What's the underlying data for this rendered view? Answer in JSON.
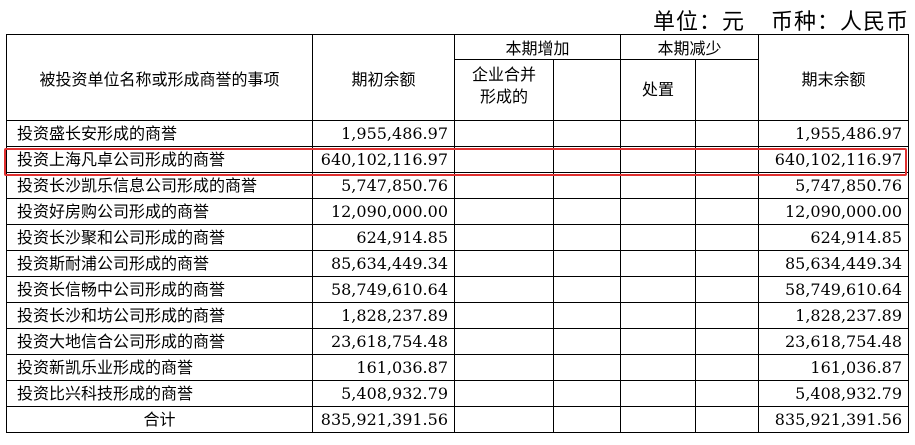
{
  "unit": {
    "unit_text": "单位：元",
    "currency_text": "币种：人民币"
  },
  "header": {
    "item_col": "被投资单位名称或形成商誉的事项",
    "opening": "期初余额",
    "increase_group": "本期增加",
    "decrease_group": "本期减少",
    "closing": "期末余额",
    "increase_sub1": "企业合并\n形成的",
    "decrease_sub1": "处置"
  },
  "rows": [
    {
      "name": "投资盛长安形成的商誉",
      "opening": "1,955,486.97",
      "closing": "1,955,486.97"
    },
    {
      "name": "投资上海凡卓公司形成的商誉",
      "opening": "640,102,116.97",
      "closing": "640,102,116.97"
    },
    {
      "name": "投资长沙凯乐信息公司形成的商誉",
      "opening": "5,747,850.76",
      "closing": "5,747,850.76"
    },
    {
      "name": "投资好房购公司形成的商誉",
      "opening": "12,090,000.00",
      "closing": "12,090,000.00"
    },
    {
      "name": "投资长沙聚和公司形成的商誉",
      "opening": "624,914.85",
      "closing": "624,914.85"
    },
    {
      "name": "投资斯耐浦公司形成的商誉",
      "opening": "85,634,449.34",
      "closing": "85,634,449.34"
    },
    {
      "name": "投资长信畅中公司形成的商誉",
      "opening": "58,749,610.64",
      "closing": "58,749,610.64"
    },
    {
      "name": "投资长沙和坊公司形成的商誉",
      "opening": "1,828,237.89",
      "closing": "1,828,237.89"
    },
    {
      "name": "投资大地信合公司形成的商誉",
      "opening": "23,618,754.48",
      "closing": "23,618,754.48"
    },
    {
      "name": "投资新凯乐业形成的商誉",
      "opening": "161,036.87",
      "closing": "161,036.87"
    },
    {
      "name": "投资比兴科技形成的商誉",
      "opening": "5,408,932.79",
      "closing": "5,408,932.79"
    }
  ],
  "total": {
    "label": "合计",
    "opening": "835,921,391.56",
    "closing": "835,921,391.56"
  },
  "highlight_color": "#e03030"
}
